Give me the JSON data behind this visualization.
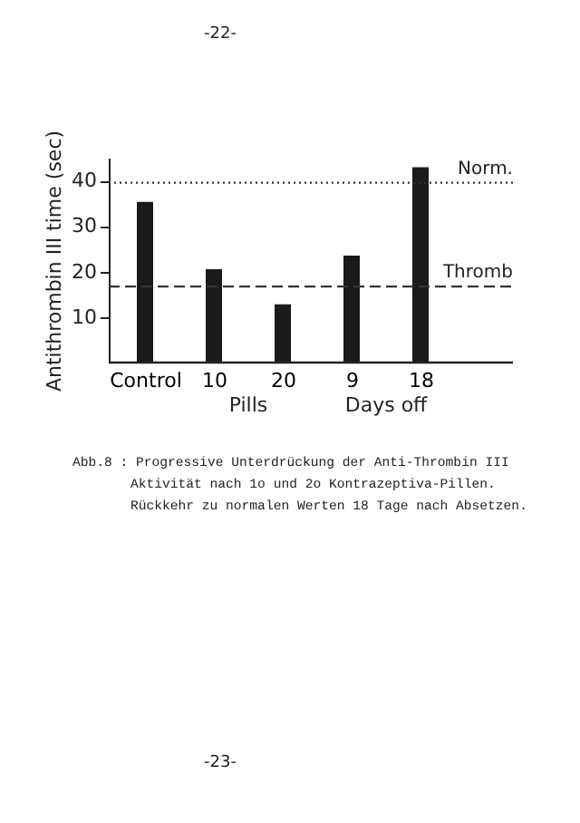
{
  "chart_data": {
    "type": "bar",
    "ylabel": "Antithrombin III time (sec)",
    "categories": [
      "Control",
      "10",
      "20",
      "9",
      "18"
    ],
    "values": [
      35.3,
      20.5,
      12.8,
      23.5,
      42.9
    ],
    "color": "#1a1a1a",
    "ylim": [
      0,
      45
    ],
    "yticks": [
      10,
      20,
      30,
      40
    ],
    "grid": false,
    "ref_lines": [
      {
        "axis": "y",
        "value": 39.5,
        "label": "Norm.",
        "line_style": "dotted",
        "color": "#333333"
      },
      {
        "axis": "y",
        "value": 16.7,
        "label": "Thromb",
        "line_style": "dashed",
        "color": "#333333"
      }
    ],
    "annotations": [
      "-22-",
      "Pills",
      "Days off",
      "Abb.8 : Progressive Unterdrückung der Anti-Thrombin III",
      "Aktivität nach 1o und 2o Kontrazeptiva-Pillen.",
      "Rückkehr zu normalen Werten 18 Tage nach Absetzen.",
      "-23-"
    ]
  }
}
